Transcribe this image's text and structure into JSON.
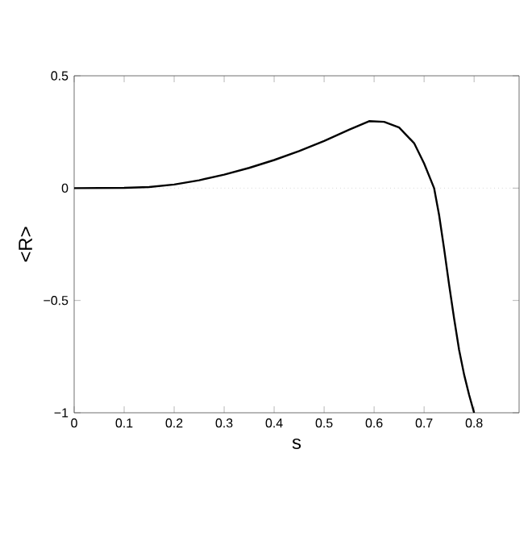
{
  "chart_data": {
    "type": "line",
    "xlabel": "s",
    "ylabel": "<R>",
    "color": "#000000",
    "xlim": [
      0,
      0.89
    ],
    "ylim": [
      -1,
      0.5
    ],
    "xticks": [
      0,
      0.1,
      0.2,
      0.3,
      0.4,
      0.5,
      0.6,
      0.7,
      0.8
    ],
    "yticks": [
      {
        "value": -1,
        "label": "−1"
      },
      {
        "value": -0.5,
        "label": "−0.5"
      },
      0,
      0.5
    ],
    "x": [
      0,
      0.1,
      0.15,
      0.2,
      0.25,
      0.3,
      0.35,
      0.4,
      0.45,
      0.5,
      0.55,
      0.59,
      0.62,
      0.65,
      0.68,
      0.7,
      0.72,
      0.73,
      0.74,
      0.75,
      0.76,
      0.77,
      0.78,
      0.79,
      0.8
    ],
    "values": [
      0,
      0.001,
      0.005,
      0.016,
      0.035,
      0.06,
      0.09,
      0.125,
      0.165,
      0.21,
      0.26,
      0.298,
      0.295,
      0.27,
      0.2,
      0.11,
      0,
      -0.12,
      -0.27,
      -0.43,
      -0.58,
      -0.72,
      -0.83,
      -0.92,
      -1
    ],
    "ref_lines": [
      {
        "axis": "y",
        "value": 0,
        "color": "#c0c0c0",
        "line_style": "dotted"
      }
    ]
  }
}
